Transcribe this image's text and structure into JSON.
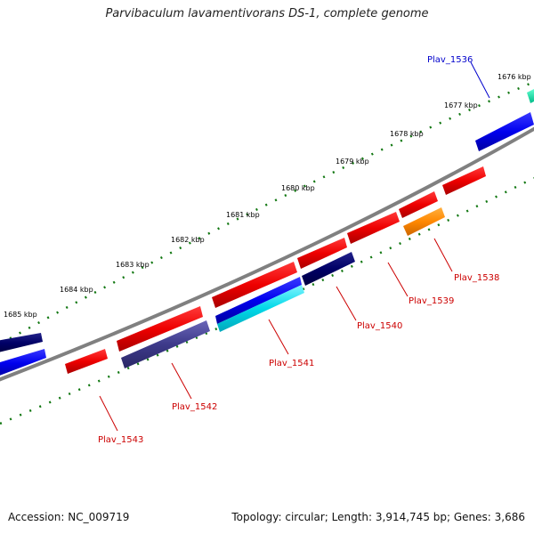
{
  "title": "Parvibaculum lavamentivorans DS-1, complete genome",
  "footer": {
    "accession": "Accession: NC_009719",
    "stats": "Topology: circular; Length: 3,914,745 bp; Genes: 3,686"
  },
  "kbp_labels": [
    "1676 kbp",
    "1677 kbp",
    "1678 kbp",
    "1679 kbp",
    "1680 kbp",
    "1681 kbp",
    "1682 kbp",
    "1683 kbp",
    "1684 kbp",
    "1685 kbp"
  ],
  "gene_labels": [
    {
      "name": "Plav_1536",
      "color": "#0000cc"
    },
    {
      "name": "Plav_1538",
      "color": "#cc0000"
    },
    {
      "name": "Plav_1539",
      "color": "#cc0000"
    },
    {
      "name": "Plav_1540",
      "color": "#cc0000"
    },
    {
      "name": "Plav_1541",
      "color": "#cc0000"
    },
    {
      "name": "Plav_1542",
      "color": "#cc0000"
    },
    {
      "name": "Plav_1543",
      "color": "#cc0000"
    }
  ],
  "colors": {
    "backbone": "#808080",
    "tick": "#117711",
    "red_gene": "#ee0000",
    "blue_gene": "#0000ee",
    "navy_gene": "#000066",
    "slate_gene": "#3d3a8a",
    "orange_gene": "#ff8800",
    "cyan_gene": "#00d0e0",
    "teal_gene": "#00ddaa"
  }
}
